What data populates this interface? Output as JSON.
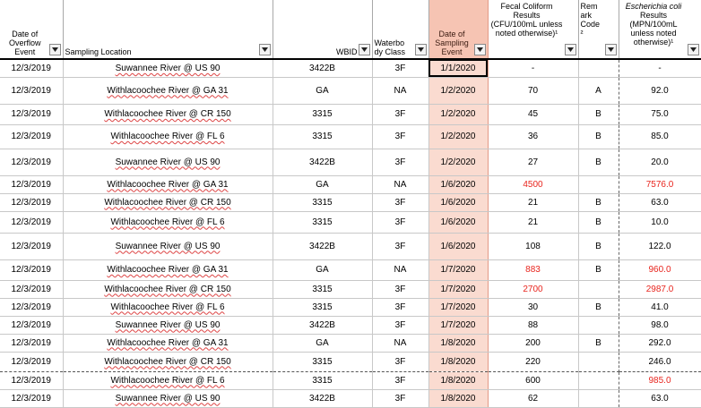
{
  "columns": [
    {
      "key": "date_overflow",
      "label": "Date of Overflow Event"
    },
    {
      "key": "location",
      "label": "Sampling Location"
    },
    {
      "key": "wbid",
      "label": "WBID"
    },
    {
      "key": "waterbody",
      "label": "Waterbo dy Class"
    },
    {
      "key": "date_sampling",
      "label": "Date of Sampling Event"
    },
    {
      "key": "fecal",
      "label": "Fecal Coliform Results (CFU/100mL unless noted otherwise)¹"
    },
    {
      "key": "remark",
      "label": "Rem ark Code ²"
    },
    {
      "key": "ecoli_italic",
      "label": "Escherichia coli",
      "label_rest": "Results (MPN/100mL unless noted otherwise)¹"
    }
  ],
  "colors": {
    "selected_column_fill": "#fadbd0",
    "selected_header_fill": "#f6c4b3",
    "exceedance_text": "#e8251e"
  },
  "rows": [
    {
      "date_overflow": "12/3/2019",
      "location": "Suwannee River @ US 90",
      "wbid": "3422B",
      "waterbody": "3F",
      "date_sampling": "1/1/2020",
      "fecal": "-",
      "remark": "",
      "ecoli": "-"
    },
    {
      "date_overflow": "12/3/2019",
      "location": "Withlacoochee River @ GA 31",
      "wbid": "GA",
      "waterbody": "NA",
      "date_sampling": "1/2/2020",
      "fecal": "70",
      "remark": "A",
      "ecoli": "92.0"
    },
    {
      "date_overflow": "12/3/2019",
      "location": "Withlacoochee River @ CR 150",
      "wbid": "3315",
      "waterbody": "3F",
      "date_sampling": "1/2/2020",
      "fecal": "45",
      "remark": "B",
      "ecoli": "75.0"
    },
    {
      "date_overflow": "12/3/2019",
      "location": "Withlacoochee River @ FL 6",
      "wbid": "3315",
      "waterbody": "3F",
      "date_sampling": "1/2/2020",
      "fecal": "36",
      "remark": "B",
      "ecoli": "85.0"
    },
    {
      "date_overflow": "12/3/2019",
      "location": "Suwannee River @ US 90",
      "wbid": "3422B",
      "waterbody": "3F",
      "date_sampling": "1/2/2020",
      "fecal": "27",
      "remark": "B",
      "ecoli": "20.0"
    },
    {
      "date_overflow": "12/3/2019",
      "location": "Withlacoochee River @ GA 31",
      "wbid": "GA",
      "waterbody": "NA",
      "date_sampling": "1/6/2020",
      "fecal": "4500",
      "remark": "",
      "ecoli": "7576.0",
      "fecal_red": true,
      "ecoli_red": true
    },
    {
      "date_overflow": "12/3/2019",
      "location": "Withlacoochee River @ CR 150",
      "wbid": "3315",
      "waterbody": "3F",
      "date_sampling": "1/6/2020",
      "fecal": "21",
      "remark": "B",
      "ecoli": "63.0"
    },
    {
      "date_overflow": "12/3/2019",
      "location": "Withlacoochee River @ FL 6",
      "wbid": "3315",
      "waterbody": "3F",
      "date_sampling": "1/6/2020",
      "fecal": "21",
      "remark": "B",
      "ecoli": "10.0"
    },
    {
      "date_overflow": "12/3/2019",
      "location": "Suwannee River @ US 90",
      "wbid": "3422B",
      "waterbody": "3F",
      "date_sampling": "1/6/2020",
      "fecal": "108",
      "remark": "B",
      "ecoli": "122.0"
    },
    {
      "date_overflow": "12/3/2019",
      "location": "Withlacoochee River @ GA 31",
      "wbid": "GA",
      "waterbody": "NA",
      "date_sampling": "1/7/2020",
      "fecal": "883",
      "remark": "B",
      "ecoli": "960.0",
      "fecal_red": true,
      "ecoli_red": true
    },
    {
      "date_overflow": "12/3/2019",
      "location": "Withlacoochee River @ CR 150",
      "wbid": "3315",
      "waterbody": "3F",
      "date_sampling": "1/7/2020",
      "fecal": "2700",
      "remark": "",
      "ecoli": "2987.0",
      "fecal_red": true,
      "ecoli_red": true
    },
    {
      "date_overflow": "12/3/2019",
      "location": "Withlacoochee River @ FL 6",
      "wbid": "3315",
      "waterbody": "3F",
      "date_sampling": "1/7/2020",
      "fecal": "30",
      "remark": "B",
      "ecoli": "41.0"
    },
    {
      "date_overflow": "12/3/2019",
      "location": "Suwannee River @ US 90",
      "wbid": "3422B",
      "waterbody": "3F",
      "date_sampling": "1/7/2020",
      "fecal": "88",
      "remark": "",
      "ecoli": "98.0"
    },
    {
      "date_overflow": "12/3/2019",
      "location": "Withlacoochee River @ GA 31",
      "wbid": "GA",
      "waterbody": "NA",
      "date_sampling": "1/8/2020",
      "fecal": "200",
      "remark": "B",
      "ecoli": "292.0"
    },
    {
      "date_overflow": "12/3/2019",
      "location": "Withlacoochee River @ CR 150",
      "wbid": "3315",
      "waterbody": "3F",
      "date_sampling": "1/8/2020",
      "fecal": "220",
      "remark": "",
      "ecoli": "246.0"
    },
    {
      "date_overflow": "12/3/2019",
      "location": "Withlacoochee River @ FL 6",
      "wbid": "3315",
      "waterbody": "3F",
      "date_sampling": "1/8/2020",
      "fecal": "600",
      "remark": "",
      "ecoli": "985.0",
      "ecoli_red": true
    },
    {
      "date_overflow": "12/3/2019",
      "location": "Suwannee River @ US 90",
      "wbid": "3422B",
      "waterbody": "3F",
      "date_sampling": "1/8/2020",
      "fecal": "62",
      "remark": "",
      "ecoli": "63.0"
    }
  ]
}
